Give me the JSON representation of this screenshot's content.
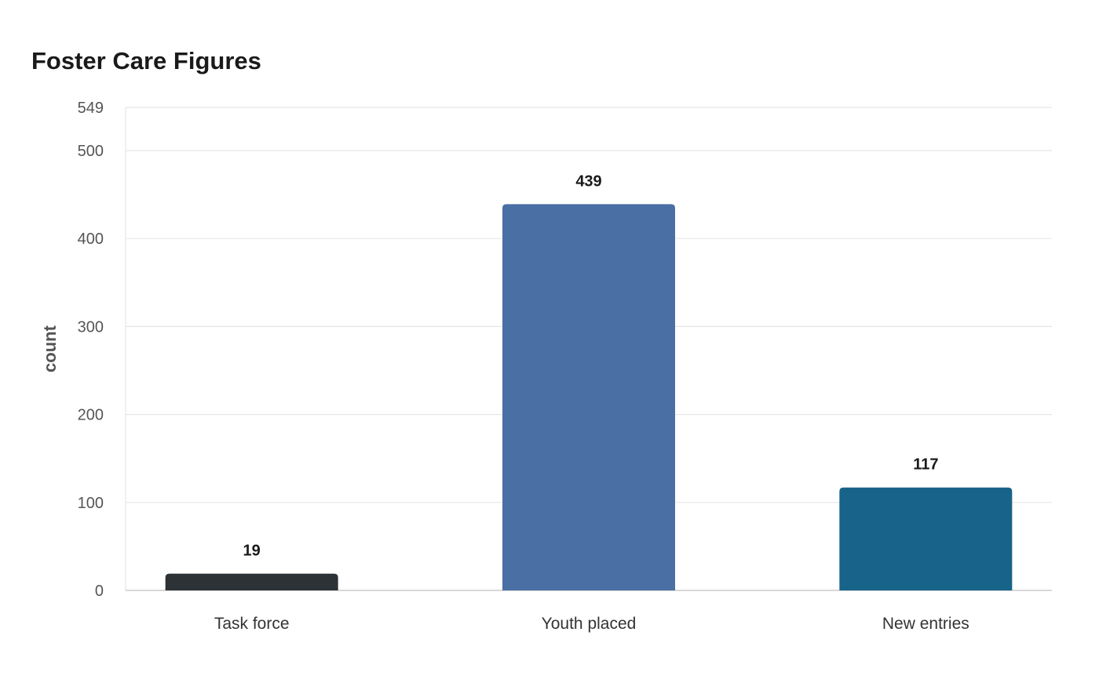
{
  "chart_data": {
    "type": "bar",
    "title": "Foster Care Figures",
    "xlabel": "",
    "ylabel": "count",
    "categories": [
      "Task force",
      "Youth placed",
      "New entries"
    ],
    "values": [
      19,
      439,
      117
    ],
    "data_labels": [
      "19",
      "439",
      "117"
    ],
    "colors": [
      "#2d3236",
      "#4a6fa5",
      "#186389"
    ],
    "ylim": [
      0,
      549
    ],
    "yticks": [
      0,
      100,
      200,
      300,
      400,
      500,
      549
    ],
    "ytick_labels": [
      "0",
      "100",
      "200",
      "300",
      "400",
      "500",
      "549"
    ],
    "grid": true,
    "legend": "none"
  },
  "colors": {
    "grid": "#e6e6e6",
    "axis": "#cccccc",
    "tick_label": "#555555",
    "category_label": "#333333",
    "data_label": "#1a1a1a",
    "ylabel": "#555555"
  }
}
